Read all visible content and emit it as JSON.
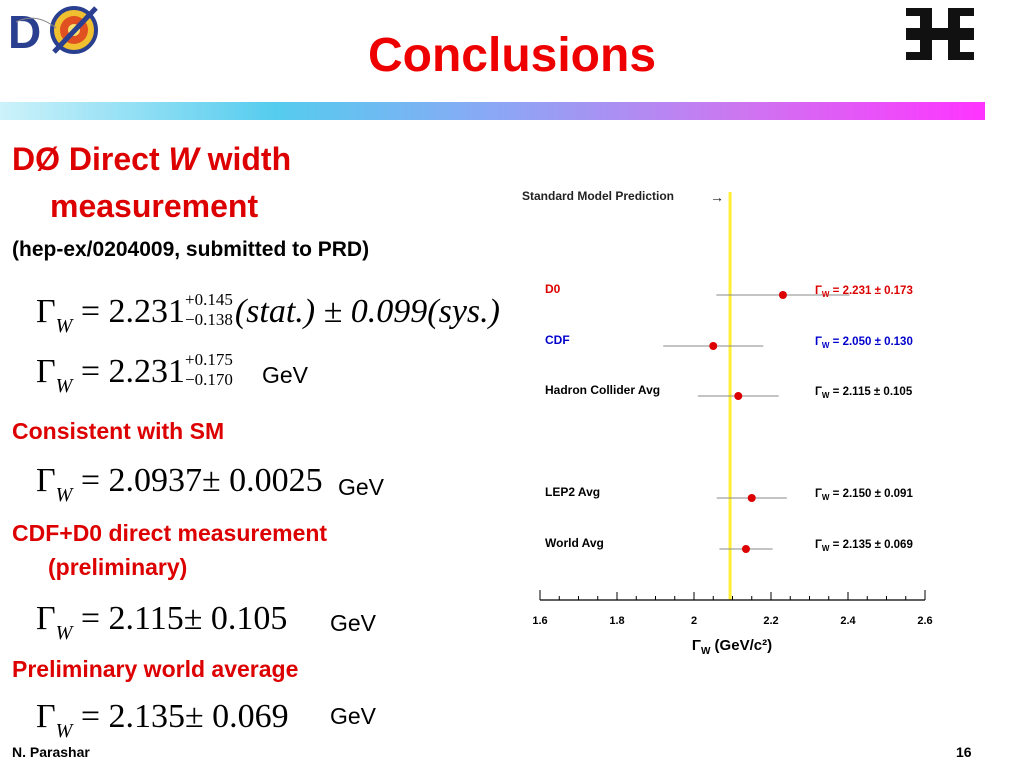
{
  "header": {
    "title": "Conclusions"
  },
  "left": {
    "heading_line1_a": "DØ Direct ",
    "heading_line1_w": "W",
    "heading_line1_b": " width",
    "heading_line2": "measurement",
    "reference": "(hep-ex/0204009, submitted to PRD)",
    "consistent_label": "Consistent with SM",
    "cdf_d0_label_line1": "CDF+D0 direct measurement",
    "cdf_d0_label_line2": "(preliminary)",
    "world_avg_label": "Preliminary world average",
    "unit": "GeV"
  },
  "equations": {
    "eq1": {
      "symbol": "Γ",
      "sub": "W",
      "eq": "= 2.231",
      "sup": "+0.145",
      "low": "−0.138",
      "rest": "(stat.) ± 0.099(sys.)"
    },
    "eq2": {
      "symbol": "Γ",
      "sub": "W",
      "eq": "= 2.231",
      "sup": "+0.175",
      "low": "−0.170"
    },
    "eq3": {
      "symbol": "Γ",
      "sub": "W",
      "eq": "= 2.0937± 0.0025"
    },
    "eq4": {
      "symbol": "Γ",
      "sub": "W",
      "eq": "= 2.115± 0.105"
    },
    "eq5": {
      "symbol": "Γ",
      "sub": "W",
      "eq": "= 2.135± 0.069"
    }
  },
  "footer": {
    "author": "N. Parashar",
    "page": "16"
  },
  "chart_data": {
    "type": "scatter",
    "title": "",
    "sm_label": "Standard Model Prediction",
    "sm_arrow": "→",
    "sm_value": 2.0937,
    "xlabel": "Γ",
    "xlabel_sub": "W",
    "xlabel_unit": "(GeV/c²)",
    "xlim": [
      1.6,
      2.6
    ],
    "xticks": [
      "1.6",
      "1.8",
      "2",
      "2.2",
      "2.4",
      "2.6"
    ],
    "series": [
      {
        "name": "D0",
        "value": 2.231,
        "err": 0.173,
        "label": "= 2.231 ± 0.173",
        "label_color": "#dd0000",
        "name_color": "#dd0000"
      },
      {
        "name": "CDF",
        "value": 2.05,
        "err": 0.13,
        "label": "= 2.050 ± 0.130",
        "label_color": "#0000cc",
        "name_color": "#0000cc"
      },
      {
        "name": "Hadron Collider Avg",
        "value": 2.115,
        "err": 0.105,
        "label": "= 2.115 ± 0.105",
        "label_color": "#000000",
        "name_color": "#000000"
      },
      {
        "name": "LEP2 Avg",
        "value": 2.15,
        "err": 0.091,
        "label": "= 2.150 ± 0.091",
        "label_color": "#000000",
        "name_color": "#000000"
      },
      {
        "name": "World Avg",
        "value": 2.135,
        "err": 0.069,
        "label": "= 2.135 ± 0.069",
        "label_color": "#000000",
        "name_color": "#000000"
      }
    ],
    "colors": {
      "marker": "#dd0000",
      "sm_line": "#ffee33",
      "errbar": "#888888"
    }
  }
}
